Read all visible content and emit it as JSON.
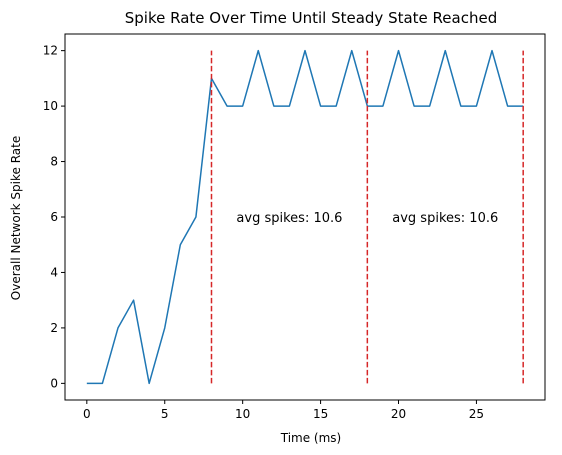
{
  "chart_data": {
    "type": "line",
    "title": "Spike Rate Over Time Until Steady State Reached",
    "xlabel": "Time (ms)",
    "ylabel": "Overall Network Spike Rate",
    "xlim": [
      -1.4,
      29.4
    ],
    "ylim": [
      -0.6,
      12.6
    ],
    "xticks": [
      0,
      5,
      10,
      15,
      20,
      25
    ],
    "yticks": [
      0,
      2,
      4,
      6,
      8,
      10,
      12
    ],
    "grid": false,
    "series": [
      {
        "color": "#1f77b4",
        "x": [
          0,
          1,
          2,
          3,
          4,
          5,
          6,
          7,
          8,
          9,
          10,
          11,
          12,
          13,
          14,
          15,
          16,
          17,
          18,
          19,
          20,
          21,
          22,
          23,
          24,
          25,
          26,
          27,
          28
        ],
        "y": [
          0,
          0,
          2,
          3,
          0,
          2,
          5,
          6,
          11,
          10,
          10,
          12,
          10,
          10,
          12,
          10,
          10,
          12,
          10,
          10,
          12,
          10,
          10,
          12,
          10,
          10,
          12,
          10,
          10
        ]
      }
    ],
    "vlines": {
      "x": [
        8,
        18,
        28
      ],
      "ymin": 0,
      "ymax": 12,
      "color": "#d62728",
      "style": "dashed"
    },
    "annotations": [
      {
        "text": "avg spikes: 10.6",
        "x": 13,
        "y": 6
      },
      {
        "text": "avg spikes: 10.6",
        "x": 23,
        "y": 6
      }
    ]
  }
}
